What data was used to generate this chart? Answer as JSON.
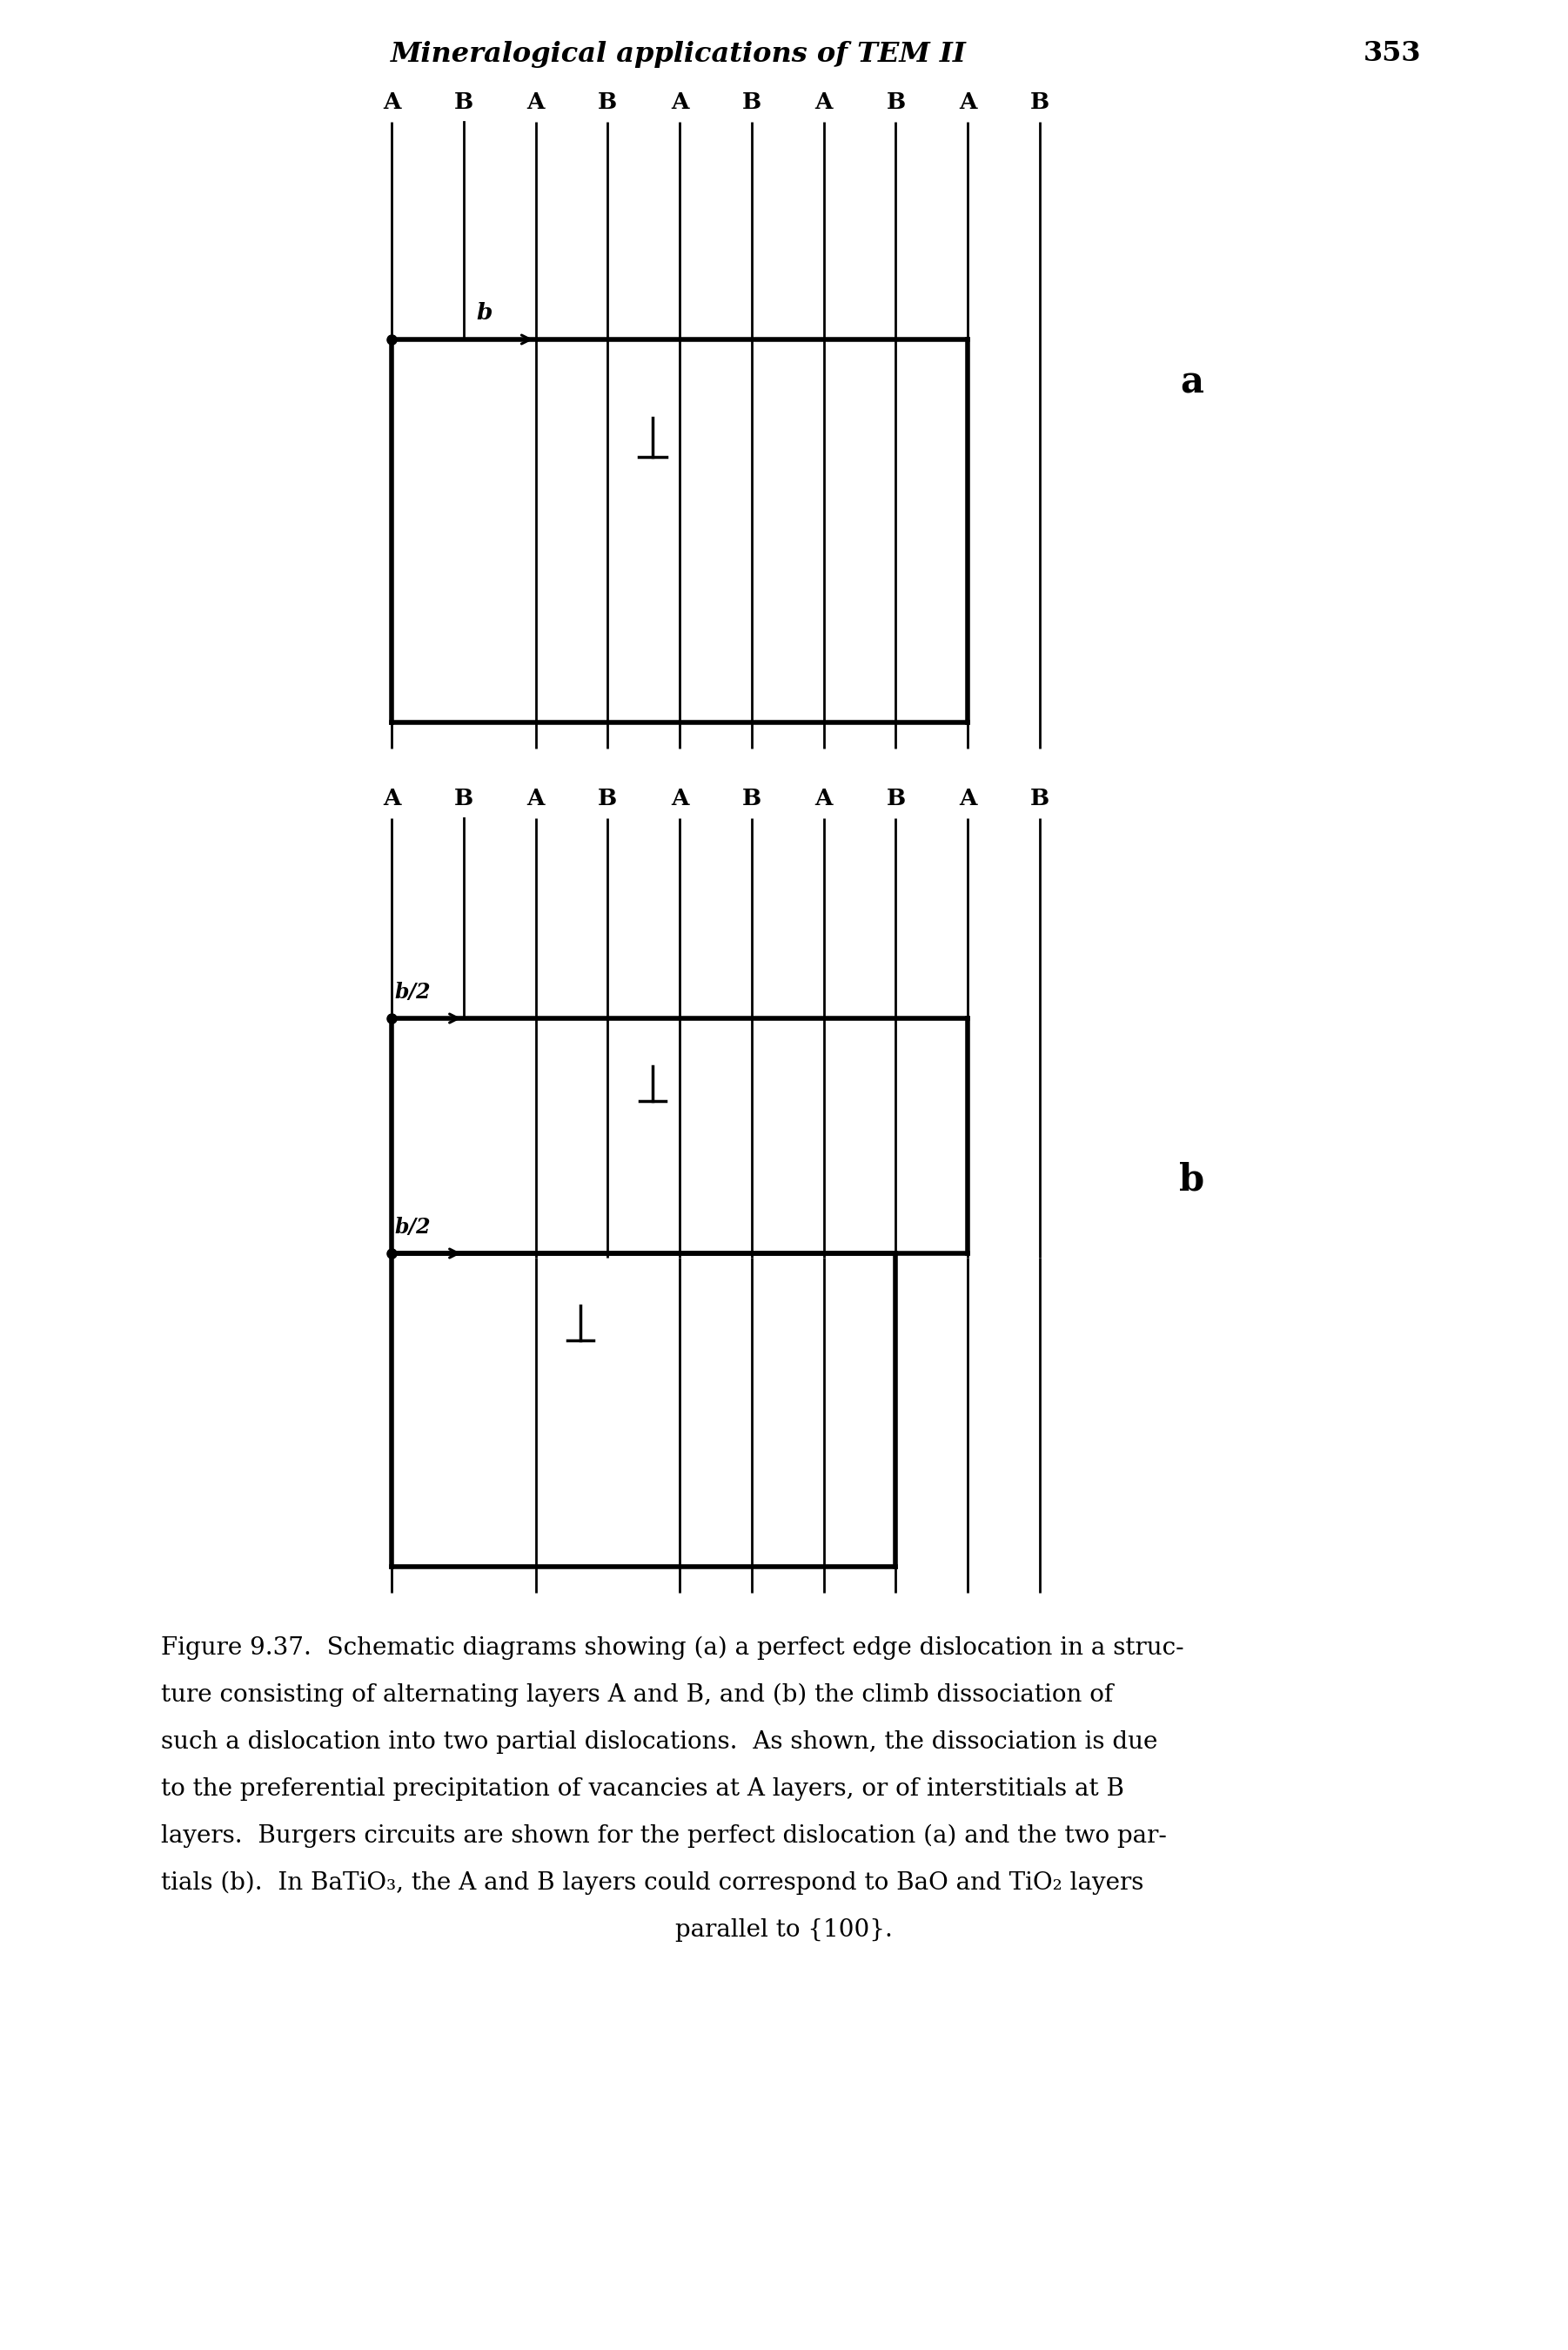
{
  "title_italic": "Mineralogical applications of TEM II",
  "page_number": "353",
  "bg_color": "#ffffff",
  "line_color": "#000000",
  "layer_labels": [
    "A",
    "B",
    "A",
    "B",
    "A",
    "B",
    "A",
    "B",
    "A",
    "B"
  ],
  "caption_line1": "Figure 9.37.  Schematic diagrams showing (a) a perfect edge dislocation in a struc-",
  "caption_line2": "ture consisting of alternating layers A and B, and (b) the climb dissociation of",
  "caption_line3": "such a dislocation into two partial dislocations.  As shown, the dissociation is due",
  "caption_line4": "to the preferential precipitation of vacancies at A layers, or of interstitials at B",
  "caption_line5": "layers.  Burgers circuits are shown for the perfect dislocation (a) and the two par-",
  "caption_line6": "tials (b).  In BaTiO₃, the A and B layers could correspond to BaO and TiO₂ layers",
  "caption_line7": "parallel to {100}."
}
